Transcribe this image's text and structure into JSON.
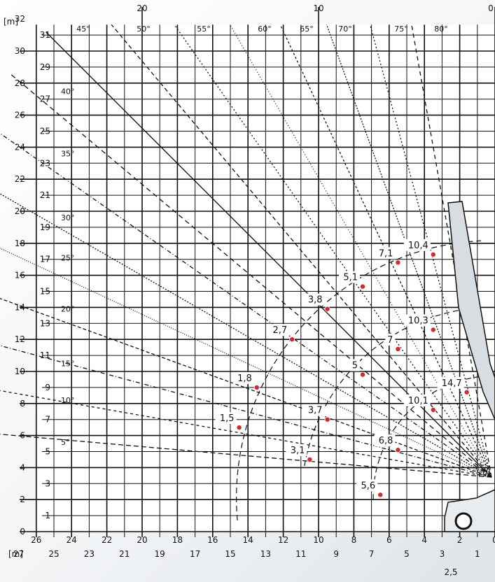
{
  "chart_data": {
    "type": "line",
    "title": "",
    "ylabel": "[m]",
    "xlabel": "[m]",
    "ylim": [
      0,
      32
    ],
    "xlim": [
      0,
      27
    ],
    "grid": true,
    "top_ticks": [
      "20",
      "10",
      "0"
    ],
    "y_ticks": [
      "0",
      "1",
      "2",
      "3",
      "4",
      "5",
      "6",
      "7",
      "8",
      "9",
      "10",
      "11",
      "12",
      "13",
      "14",
      "15",
      "16",
      "17",
      "18",
      "19",
      "20",
      "21",
      "22",
      "23",
      "24",
      "25",
      "26",
      "27",
      "28",
      "29",
      "30",
      "31",
      "32"
    ],
    "x_ticks_upper": [
      "26",
      "24",
      "22",
      "20",
      "18",
      "16",
      "14",
      "12",
      "10",
      "8",
      "6",
      "4",
      "2",
      "0"
    ],
    "x_ticks_lower": [
      "27",
      "25",
      "23",
      "21",
      "19",
      "17",
      "15",
      "13",
      "11",
      "9",
      "7",
      "5",
      "3",
      "1"
    ],
    "x_extra_tick": "2,5",
    "boom_angles_top": [
      "45°",
      "50°",
      "55°",
      "60°",
      "65°",
      "70°",
      "75°",
      "80°"
    ],
    "boom_angles_left": [
      "40°",
      "35°",
      "30°",
      "25°",
      "20°",
      "15°",
      "10°",
      "5°"
    ],
    "load_points": [
      {
        "label": "10,4",
        "x": 3.5,
        "y": 17.3
      },
      {
        "label": "7,1",
        "x": 5.5,
        "y": 16.8
      },
      {
        "label": "5,1",
        "x": 7.5,
        "y": 15.3
      },
      {
        "label": "3,8",
        "x": 9.5,
        "y": 13.9
      },
      {
        "label": "10,3",
        "x": 3.5,
        "y": 12.6
      },
      {
        "label": "2,7",
        "x": 11.5,
        "y": 12.0
      },
      {
        "label": "7",
        "x": 5.5,
        "y": 11.4
      },
      {
        "label": "5",
        "x": 7.5,
        "y": 9.8
      },
      {
        "label": "1,8",
        "x": 13.5,
        "y": 9.0
      },
      {
        "label": "14,7",
        "x": 1.6,
        "y": 8.7
      },
      {
        "label": "10,1",
        "x": 3.5,
        "y": 7.6
      },
      {
        "label": "3,7",
        "x": 9.5,
        "y": 7.0
      },
      {
        "label": "1,5",
        "x": 14.5,
        "y": 6.5
      },
      {
        "label": "6,8",
        "x": 5.5,
        "y": 5.1
      },
      {
        "label": "3,1",
        "x": 10.5,
        "y": 4.5
      },
      {
        "label": "5,6",
        "x": 6.5,
        "y": 2.3
      }
    ],
    "colors": {
      "grid": "#111111",
      "point": "#d42a2a",
      "background": "#ffffff"
    }
  }
}
